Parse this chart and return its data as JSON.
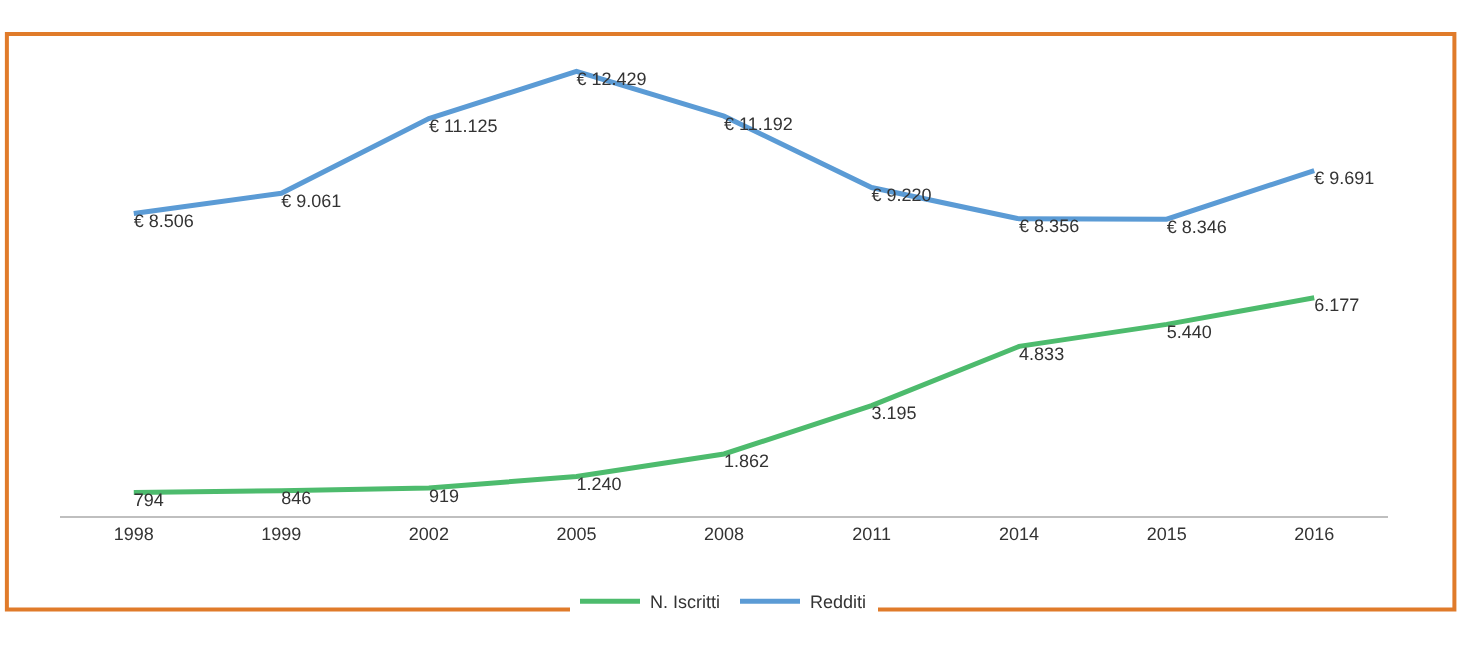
{
  "chart_data": {
    "type": "line",
    "categories": [
      "1998",
      "1999",
      "2002",
      "2005",
      "2008",
      "2011",
      "2014",
      "2015",
      "2016"
    ],
    "series": [
      {
        "name": "N. Iscritti",
        "color": "#4dbb6d",
        "axis": "y",
        "values": [
          794,
          846,
          919,
          1240,
          1862,
          3195,
          4833,
          5440,
          6177
        ],
        "value_labels": [
          "794",
          "846",
          "919",
          "1.240",
          "1.862",
          "3.195",
          "4.833",
          "5.440",
          "6.177"
        ]
      },
      {
        "name": "Redditi",
        "color": "#5b9bd5",
        "values": [
          8506,
          9061,
          11125,
          12429,
          11192,
          9220,
          8356,
          8346,
          9691
        ],
        "value_labels": [
          "€ 8.506",
          "€ 9.061",
          "€ 11.125",
          "€ 12.429",
          "€ 11.192",
          "€ 9.220",
          "€ 8.356",
          "€ 8.346",
          "€ 9.691"
        ]
      }
    ],
    "tick_labels": "x",
    "legend": "bottom",
    "marker": "none",
    "line_style": "solid"
  }
}
